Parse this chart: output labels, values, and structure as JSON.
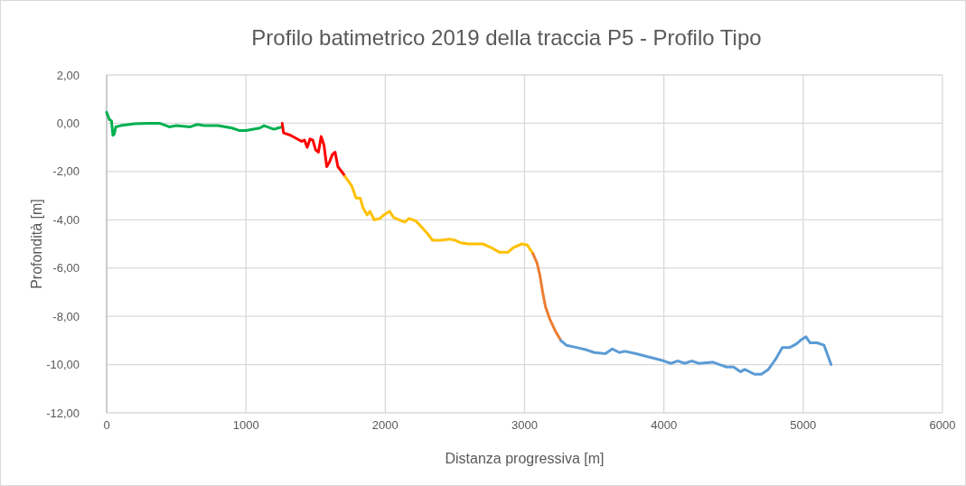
{
  "chart_data": {
    "type": "line",
    "title": "Profilo batimetrico 2019 della traccia P5 - Profilo Tipo",
    "xlabel": "Distanza progressiva [m]",
    "ylabel": "Profondità [m]",
    "xlim": [
      0,
      6000
    ],
    "xticks": [
      0,
      1000,
      2000,
      3000,
      4000,
      5000,
      6000
    ],
    "ylim": [
      -12,
      2
    ],
    "yticks": [
      {
        "value": -12,
        "label": "-12,00"
      },
      {
        "value": -10,
        "label": "-10,00"
      },
      {
        "value": -8,
        "label": "-8,00"
      },
      {
        "value": -6,
        "label": "-6,00"
      },
      {
        "value": -4,
        "label": "-4,00"
      },
      {
        "value": -2,
        "label": "-2,00"
      },
      {
        "value": 0,
        "label": "0,00"
      },
      {
        "value": 2,
        "label": "2,00"
      }
    ],
    "grid": true,
    "marker": "none",
    "line_style": "solid",
    "series": [
      {
        "color": "#00b050",
        "x": [
          0,
          10,
          20,
          35,
          45,
          55,
          65,
          100,
          200,
          300,
          380,
          450,
          500,
          600,
          650,
          700,
          800,
          900,
          950,
          1000,
          1100,
          1130,
          1200,
          1230,
          1260
        ],
        "values": [
          0.45,
          0.3,
          0.15,
          0.1,
          -0.5,
          -0.45,
          -0.15,
          -0.1,
          -0.02,
          0,
          0,
          -0.15,
          -0.1,
          -0.15,
          -0.05,
          -0.1,
          -0.1,
          -0.2,
          -0.3,
          -0.3,
          -0.2,
          -0.1,
          -0.25,
          -0.2,
          -0.15
        ]
      },
      {
        "color": "#ff0000",
        "x": [
          1260,
          1270,
          1320,
          1400,
          1420,
          1440,
          1460,
          1480,
          1500,
          1520,
          1540,
          1560,
          1580,
          1600,
          1620,
          1640,
          1660,
          1700,
          1710
        ],
        "values": [
          0,
          -0.4,
          -0.5,
          -0.75,
          -0.7,
          -1.0,
          -0.65,
          -0.7,
          -1.1,
          -1.2,
          -0.55,
          -0.9,
          -1.8,
          -1.6,
          -1.3,
          -1.2,
          -1.8,
          -2.1,
          -2.2
        ]
      },
      {
        "color": "#ffc000",
        "x": [
          1710,
          1760,
          1790,
          1820,
          1840,
          1870,
          1890,
          1920,
          1960,
          1990,
          2030,
          2060,
          2100,
          2140,
          2170,
          2220,
          2260,
          2300,
          2340,
          2400,
          2460,
          2500,
          2540,
          2600,
          2700,
          2760,
          2820,
          2880,
          2920,
          2980,
          3020,
          3060
        ],
        "values": [
          -2.2,
          -2.6,
          -3.1,
          -3.1,
          -3.5,
          -3.8,
          -3.65,
          -4.0,
          -3.95,
          -3.8,
          -3.65,
          -3.9,
          -4.0,
          -4.1,
          -3.95,
          -4.05,
          -4.3,
          -4.55,
          -4.85,
          -4.85,
          -4.8,
          -4.85,
          -4.95,
          -5.0,
          -5.0,
          -5.15,
          -5.35,
          -5.35,
          -5.15,
          -5.0,
          -5.05,
          -5.4
        ]
      },
      {
        "color": "#ed7d31",
        "x": [
          3060,
          3090,
          3110,
          3130,
          3150,
          3180,
          3220,
          3260
        ],
        "values": [
          -5.4,
          -5.8,
          -6.3,
          -7.0,
          -7.6,
          -8.1,
          -8.6,
          -9.0
        ]
      },
      {
        "color": "#5b9bd5",
        "x": [
          3260,
          3300,
          3380,
          3450,
          3500,
          3580,
          3630,
          3680,
          3720,
          3800,
          3900,
          4000,
          4050,
          4100,
          4150,
          4200,
          4250,
          4350,
          4400,
          4450,
          4500,
          4550,
          4580,
          4650,
          4700,
          4750,
          4800,
          4850,
          4900,
          4950,
          4980,
          5020,
          5050,
          5100,
          5150,
          5200
        ],
        "values": [
          -9.0,
          -9.2,
          -9.3,
          -9.4,
          -9.5,
          -9.55,
          -9.35,
          -9.5,
          -9.45,
          -9.55,
          -9.7,
          -9.85,
          -9.95,
          -9.85,
          -9.95,
          -9.85,
          -9.95,
          -9.9,
          -10.0,
          -10.1,
          -10.1,
          -10.3,
          -10.2,
          -10.4,
          -10.4,
          -10.2,
          -9.8,
          -9.3,
          -9.3,
          -9.15,
          -9.0,
          -8.85,
          -9.1,
          -9.1,
          -9.2,
          -10.0
        ]
      }
    ]
  }
}
